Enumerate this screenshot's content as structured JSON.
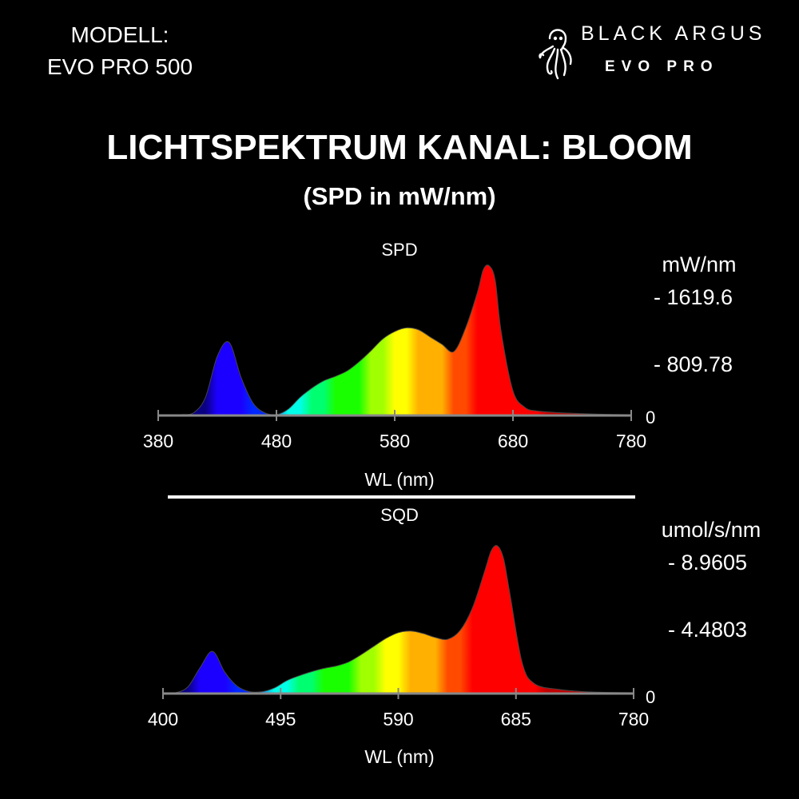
{
  "header": {
    "model_label": "MODELL:",
    "model_name": "EVO PRO 500",
    "brand": "BLACK ARGUS",
    "brand_sub": "EVO PRO"
  },
  "title": "LICHTSPEKTRUM KANAL: BLOOM",
  "subtitle": "(SPD in mW/nm)",
  "colors": {
    "background": "#000000",
    "text": "#ffffff",
    "axis": "#888888"
  },
  "chart_data": [
    {
      "type": "area",
      "title": "SPD",
      "xlabel": "WL (nm)",
      "ylabel": "mW/nm",
      "xlim": [
        380,
        780
      ],
      "ylim": [
        0,
        1619.6
      ],
      "x_ticks": [
        "380",
        "480",
        "580",
        "680",
        "780"
      ],
      "y_ticks": [
        "- 1619.6",
        "- 809.78",
        "0"
      ],
      "grid": false,
      "fill": "visible spectrum gradient",
      "x": [
        380,
        390,
        400,
        410,
        420,
        430,
        440,
        450,
        460,
        470,
        480,
        490,
        500,
        510,
        520,
        530,
        540,
        550,
        560,
        570,
        580,
        590,
        600,
        610,
        620,
        630,
        640,
        650,
        655,
        660,
        665,
        670,
        680,
        690,
        700,
        720,
        740,
        760,
        780
      ],
      "y": [
        0,
        4,
        10,
        30,
        200,
        650,
        800,
        420,
        140,
        30,
        10,
        70,
        200,
        300,
        380,
        430,
        490,
        590,
        710,
        840,
        920,
        960,
        940,
        860,
        780,
        700,
        960,
        1350,
        1600,
        1640,
        1480,
        920,
        270,
        90,
        50,
        30,
        20,
        12,
        8
      ]
    },
    {
      "type": "area",
      "title": "SQD",
      "xlabel": "WL (nm)",
      "ylabel": "umol/s/nm",
      "xlim": [
        400,
        780
      ],
      "ylim": [
        0,
        8.9605
      ],
      "x_ticks": [
        "400",
        "495",
        "590",
        "685",
        "780"
      ],
      "y_ticks": [
        "- 8.9605",
        "- 4.4803",
        "0"
      ],
      "grid": false,
      "fill": "visible spectrum gradient",
      "x": [
        400,
        410,
        420,
        430,
        440,
        450,
        460,
        470,
        480,
        490,
        500,
        510,
        520,
        530,
        540,
        550,
        560,
        570,
        580,
        590,
        600,
        610,
        620,
        630,
        640,
        650,
        660,
        665,
        670,
        675,
        680,
        690,
        700,
        720,
        740,
        760,
        780
      ],
      "y": [
        0,
        0.05,
        0.4,
        1.6,
        2.6,
        1.3,
        0.45,
        0.12,
        0.12,
        0.35,
        0.8,
        1.1,
        1.35,
        1.55,
        1.7,
        1.95,
        2.4,
        2.9,
        3.4,
        3.75,
        3.85,
        3.7,
        3.45,
        3.35,
        3.9,
        5.3,
        7.6,
        8.8,
        9.1,
        8.3,
        6.2,
        1.9,
        0.6,
        0.25,
        0.12,
        0.07,
        0.05
      ]
    }
  ]
}
